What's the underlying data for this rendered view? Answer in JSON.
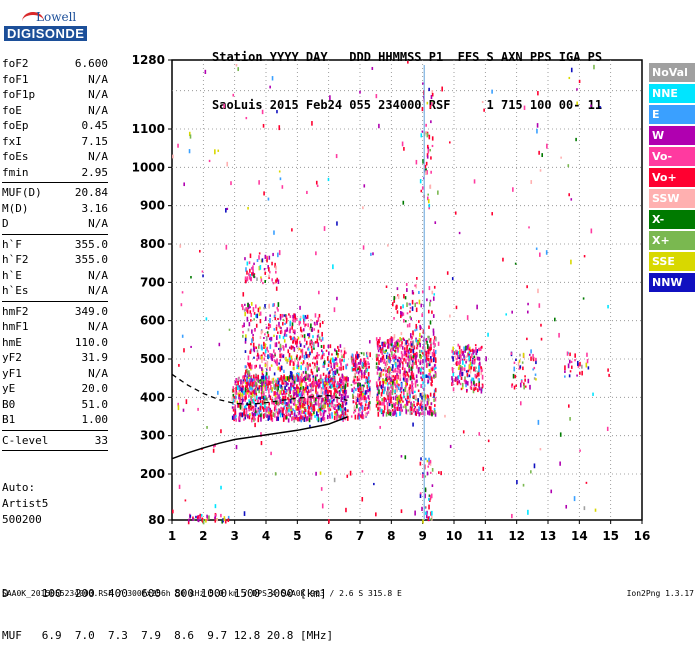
{
  "logo": {
    "top": "Lowell",
    "main": "DIGISONDE"
  },
  "header": {
    "line1": "Station YYYY DAY   DDD HHMMSS P1  FFS S AXN PPS IGA PS",
    "line2": "SaoLuis 2015 Feb24 055 234000 RSF     1 715 100 00- 11"
  },
  "params": [
    {
      "name": "foF2",
      "value": "6.600"
    },
    {
      "name": "foF1",
      "value": "N/A"
    },
    {
      "name": "foF1p",
      "value": "N/A"
    },
    {
      "name": "foE",
      "value": "N/A"
    },
    {
      "name": "foEp",
      "value": "0.45"
    },
    {
      "name": "fxI",
      "value": "7.15"
    },
    {
      "name": "foEs",
      "value": "N/A"
    },
    {
      "name": "fmin",
      "value": "2.95"
    },
    {
      "sep": true
    },
    {
      "name": "MUF(D)",
      "value": "20.84"
    },
    {
      "name": "M(D)",
      "value": "3.16"
    },
    {
      "name": "D",
      "value": "N/A"
    },
    {
      "sep": true
    },
    {
      "name": "h`F",
      "value": "355.0"
    },
    {
      "name": "h`F2",
      "value": "355.0"
    },
    {
      "name": "h`E",
      "value": "N/A"
    },
    {
      "name": "h`Es",
      "value": "N/A"
    },
    {
      "sep": true
    },
    {
      "name": "hmF2",
      "value": "349.0"
    },
    {
      "name": "hmF1",
      "value": "N/A"
    },
    {
      "name": "hmE",
      "value": "110.0"
    },
    {
      "name": "yF2",
      "value": "31.9"
    },
    {
      "name": "yF1",
      "value": "N/A"
    },
    {
      "name": "yE",
      "value": "20.0"
    },
    {
      "name": "B0",
      "value": "51.0"
    },
    {
      "name": "B1",
      "value": "1.00"
    },
    {
      "sep": true
    },
    {
      "name": "C-level",
      "value": "33"
    },
    {
      "sep": true
    }
  ],
  "auto": {
    "line1": "Auto:",
    "line2": "Artist5",
    "line3": "500200"
  },
  "dmuf": {
    "d_line": "D     100  200  400  600  800 1000 1500 3000 [km]",
    "muf_line": "MUF   6.9  7.0  7.3  7.9  8.6  9.7 12.8 20.8 [MHz]"
  },
  "footer": {
    "left": "SAA0K_2015055234000.RSF / 300fx256h 50 kHz 5.0 km / DPS-4 SAA0K 903 / 2.6 S 315.8 E",
    "right": "Ion2Png 1.3.17"
  },
  "legend": [
    {
      "label": "NoVal",
      "color": "#a0a0a0"
    },
    {
      "label": "NNE",
      "color": "#00e5ff"
    },
    {
      "label": "E",
      "color": "#3aa0ff"
    },
    {
      "label": "W",
      "color": "#b000b0"
    },
    {
      "label": "Vo-",
      "color": "#ff3aa0"
    },
    {
      "label": "Vo+",
      "color": "#ff0030"
    },
    {
      "label": "SSW",
      "color": "#ffb0b0"
    },
    {
      "label": "X-",
      "color": "#007a00"
    },
    {
      "label": "X+",
      "color": "#7ab850"
    },
    {
      "label": "SSE",
      "color": "#d8d800"
    },
    {
      "label": "NNW",
      "color": "#1010c0"
    }
  ],
  "chart_data": {
    "type": "scatter",
    "xlabel": "",
    "ylabel": "",
    "x_ticks": [
      "1",
      "2",
      "3",
      "4",
      "5",
      "6",
      "7",
      "8",
      "9",
      "10",
      "11",
      "12",
      "13",
      "14",
      "15",
      "16"
    ],
    "y_ticks": [
      "80",
      "200",
      "300",
      "400",
      "500",
      "600",
      "700",
      "800",
      "900",
      "1000",
      "1100",
      "1280"
    ],
    "xlim": [
      1,
      16
    ],
    "ylim": [
      80,
      1280
    ],
    "grid": true,
    "clusters": [
      {
        "fmin": 2.9,
        "fmax": 6.6,
        "hmin": 345,
        "hmax": 460,
        "n": 1100
      },
      {
        "fmin": 3.3,
        "fmax": 6.6,
        "hmin": 440,
        "hmax": 540,
        "n": 350
      },
      {
        "fmin": 3.2,
        "fmax": 4.4,
        "hmin": 540,
        "hmax": 650,
        "n": 90
      },
      {
        "fmin": 4.4,
        "fmax": 5.8,
        "hmin": 540,
        "hmax": 620,
        "n": 120
      },
      {
        "fmin": 3.3,
        "fmax": 4.4,
        "hmin": 700,
        "hmax": 780,
        "n": 60
      },
      {
        "fmin": 6.7,
        "fmax": 7.3,
        "hmin": 350,
        "hmax": 520,
        "n": 220
      },
      {
        "fmin": 7.5,
        "fmax": 9.4,
        "hmin": 360,
        "hmax": 560,
        "n": 800
      },
      {
        "fmin": 8.0,
        "fmax": 9.4,
        "hmin": 560,
        "hmax": 700,
        "n": 80
      },
      {
        "fmin": 9.9,
        "fmax": 10.9,
        "hmin": 420,
        "hmax": 540,
        "n": 200
      },
      {
        "fmin": 11.8,
        "fmax": 12.6,
        "hmin": 430,
        "hmax": 520,
        "n": 40
      },
      {
        "fmin": 13.5,
        "fmax": 14.3,
        "hmin": 450,
        "hmax": 520,
        "n": 25
      },
      {
        "fmin": 1.4,
        "fmax": 2.8,
        "hmin": 80,
        "hmax": 100,
        "n": 40
      },
      {
        "fmin": 8.9,
        "fmax": 9.3,
        "hmin": 80,
        "hmax": 250,
        "n": 40
      },
      {
        "fmin": 8.9,
        "fmax": 9.3,
        "hmin": 900,
        "hmax": 1230,
        "n": 50
      },
      {
        "fmin": 1.0,
        "fmax": 15.0,
        "hmin": 80,
        "hmax": 1280,
        "n": 260
      }
    ],
    "true_height_profile": [
      [
        1.0,
        240
      ],
      [
        1.5,
        255
      ],
      [
        2.0,
        268
      ],
      [
        2.5,
        280
      ],
      [
        3.0,
        290
      ],
      [
        4.0,
        302
      ],
      [
        5.0,
        314
      ],
      [
        6.0,
        330
      ],
      [
        6.6,
        349
      ]
    ],
    "dashed_trace": [
      [
        1.0,
        460
      ],
      [
        1.5,
        432
      ],
      [
        2.0,
        410
      ],
      [
        2.5,
        394
      ],
      [
        3.0,
        384
      ],
      [
        3.5,
        382
      ],
      [
        4.0,
        386
      ],
      [
        5.0,
        398
      ],
      [
        6.0,
        405
      ],
      [
        6.6,
        392
      ]
    ],
    "vertical_trace_x": 9.05
  }
}
